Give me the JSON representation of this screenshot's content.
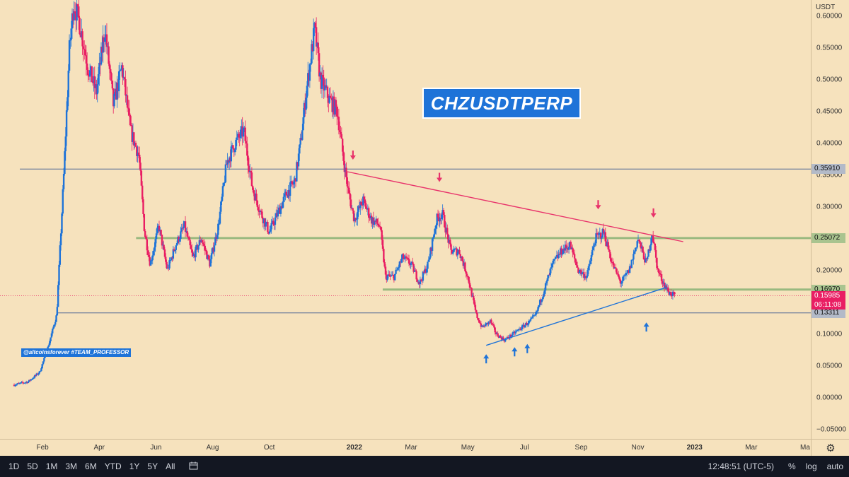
{
  "symbol_title": "CHZUSDTPERP",
  "watermark": "@altcoinsforever #TEAM_PROFESSOR",
  "currency": "USDT",
  "colors": {
    "background": "#f6e2bd",
    "up": "#1e73d8",
    "down": "#e91e63",
    "resistance_line": "#e8336b",
    "support_trend": "#1e73d8",
    "green_levels": "#99b97f",
    "gray_levels": "#7f8aa0"
  },
  "chart_data": {
    "type": "candlestick",
    "title": "CHZUSDTPERP",
    "y_ticks": [
      0.6,
      0.55,
      0.5,
      0.45,
      0.4,
      0.35,
      0.3,
      0.25,
      0.2,
      0.15,
      0.1,
      0.05,
      0.0,
      -0.05
    ],
    "y_tick_labels": [
      "0.60000",
      "0.55000",
      "0.50000",
      "0.45000",
      "0.40000",
      "0.35000",
      "0.30000",
      "0.25000",
      "0.20000",
      "0.15000",
      "0.10000",
      "0.05000",
      "0.00000",
      "−0.05000"
    ],
    "ylim": [
      -0.065,
      0.625
    ],
    "x_ticks": [
      "Feb",
      "Apr",
      "Jun",
      "Aug",
      "Oct",
      "2022",
      "Mar",
      "May",
      "Jul",
      "Sep",
      "Nov",
      "2023",
      "Mar",
      "Ma"
    ],
    "x_tick_year_flags": [
      false,
      false,
      false,
      false,
      false,
      true,
      false,
      false,
      false,
      false,
      false,
      true,
      false,
      false
    ],
    "x_tick_months": [
      1,
      3,
      5,
      7,
      9,
      12,
      14,
      16,
      18,
      20,
      22,
      24,
      26,
      28
    ],
    "xlim_months": [
      -0.5,
      28.1
    ],
    "current_price": "0.15985",
    "countdown": "06:11:08",
    "levels": [
      {
        "price": 0.3591,
        "label": "0.35910",
        "style": "gray"
      },
      {
        "price": 0.25072,
        "label": "0.25072",
        "style": "green"
      },
      {
        "price": 0.1697,
        "label": "0.16970",
        "style": "green"
      },
      {
        "price": 0.13311,
        "label": "0.13311",
        "style": "gray"
      }
    ],
    "down_trendline": {
      "from": [
        11.75,
        0.355
      ],
      "to": [
        23.6,
        0.245
      ]
    },
    "up_trendline": {
      "from": [
        16.65,
        0.082
      ],
      "to": [
        23.0,
        0.173
      ]
    },
    "down_arrows": [
      [
        11.95,
        0.375
      ],
      [
        15.0,
        0.34
      ],
      [
        20.6,
        0.297
      ],
      [
        22.55,
        0.284
      ]
    ],
    "up_arrows": [
      [
        16.65,
        0.067
      ],
      [
        17.65,
        0.078
      ],
      [
        18.1,
        0.083
      ],
      [
        22.3,
        0.117
      ]
    ],
    "closes": [
      [
        0.0,
        0.02
      ],
      [
        0.5,
        0.025
      ],
      [
        0.9,
        0.04
      ],
      [
        1.2,
        0.08
      ],
      [
        1.5,
        0.13
      ],
      [
        1.75,
        0.35
      ],
      [
        1.95,
        0.55
      ],
      [
        2.1,
        0.62
      ],
      [
        2.3,
        0.59
      ],
      [
        2.6,
        0.52
      ],
      [
        2.9,
        0.48
      ],
      [
        3.2,
        0.58
      ],
      [
        3.5,
        0.46
      ],
      [
        3.8,
        0.52
      ],
      [
        4.1,
        0.42
      ],
      [
        4.4,
        0.38
      ],
      [
        4.6,
        0.26
      ],
      [
        4.8,
        0.21
      ],
      [
        5.1,
        0.27
      ],
      [
        5.4,
        0.2
      ],
      [
        5.7,
        0.24
      ],
      [
        6.0,
        0.27
      ],
      [
        6.3,
        0.22
      ],
      [
        6.6,
        0.25
      ],
      [
        6.9,
        0.21
      ],
      [
        7.2,
        0.27
      ],
      [
        7.5,
        0.37
      ],
      [
        7.8,
        0.4
      ],
      [
        8.1,
        0.42
      ],
      [
        8.4,
        0.33
      ],
      [
        8.7,
        0.29
      ],
      [
        9.0,
        0.26
      ],
      [
        9.3,
        0.29
      ],
      [
        9.6,
        0.32
      ],
      [
        9.9,
        0.34
      ],
      [
        10.1,
        0.4
      ],
      [
        10.3,
        0.48
      ],
      [
        10.6,
        0.58
      ],
      [
        10.8,
        0.5
      ],
      [
        11.1,
        0.47
      ],
      [
        11.4,
        0.45
      ],
      [
        11.6,
        0.38
      ],
      [
        11.8,
        0.32
      ],
      [
        12.0,
        0.28
      ],
      [
        12.3,
        0.31
      ],
      [
        12.6,
        0.28
      ],
      [
        12.9,
        0.27
      ],
      [
        13.1,
        0.19
      ],
      [
        13.4,
        0.19
      ],
      [
        13.7,
        0.22
      ],
      [
        14.0,
        0.21
      ],
      [
        14.3,
        0.18
      ],
      [
        14.6,
        0.21
      ],
      [
        14.9,
        0.28
      ],
      [
        15.1,
        0.29
      ],
      [
        15.4,
        0.23
      ],
      [
        15.7,
        0.23
      ],
      [
        16.0,
        0.19
      ],
      [
        16.3,
        0.13
      ],
      [
        16.5,
        0.11
      ],
      [
        16.8,
        0.12
      ],
      [
        17.0,
        0.1
      ],
      [
        17.3,
        0.09
      ],
      [
        17.6,
        0.1
      ],
      [
        17.9,
        0.11
      ],
      [
        18.2,
        0.12
      ],
      [
        18.4,
        0.13
      ],
      [
        18.7,
        0.17
      ],
      [
        19.0,
        0.21
      ],
      [
        19.3,
        0.23
      ],
      [
        19.6,
        0.24
      ],
      [
        19.9,
        0.2
      ],
      [
        20.2,
        0.19
      ],
      [
        20.5,
        0.25
      ],
      [
        20.8,
        0.26
      ],
      [
        21.1,
        0.21
      ],
      [
        21.4,
        0.18
      ],
      [
        21.7,
        0.2
      ],
      [
        22.0,
        0.25
      ],
      [
        22.3,
        0.21
      ],
      [
        22.5,
        0.26
      ],
      [
        22.7,
        0.2
      ],
      [
        22.9,
        0.18
      ],
      [
        23.1,
        0.165
      ],
      [
        23.3,
        0.16
      ]
    ]
  },
  "time_ranges": [
    "1D",
    "5D",
    "1M",
    "3M",
    "6M",
    "YTD",
    "1Y",
    "5Y",
    "All"
  ],
  "clock": "12:48:51 (UTC-5)",
  "bottom_right": {
    "percent": "%",
    "log": "log",
    "auto": "auto"
  },
  "icons": {
    "compare": "calendar-range-icon",
    "settings": "gear-icon"
  }
}
